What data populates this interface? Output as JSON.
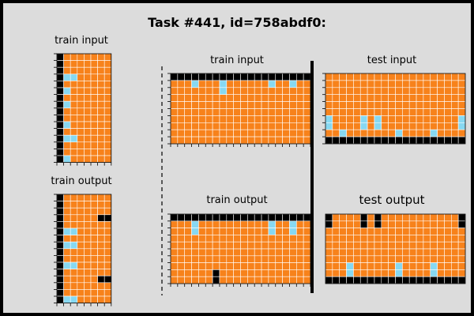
{
  "title": "Task #441, id=758abdf0:",
  "labels": {
    "train_input": "train input",
    "train_output": "train output",
    "test_input": "test input",
    "test_output": "test output"
  },
  "colors": {
    "background": "#dcdcdc",
    "orange": "#f7821b",
    "black": "#000000",
    "cyan": "#87d8f1",
    "gridline": "#ffffff"
  },
  "grids": {
    "left_train_input": {
      "rows": 16,
      "cols": 8,
      "black_cols": [
        0
      ],
      "black_cells": [],
      "cyan_cells": [
        [
          3,
          1
        ],
        [
          3,
          2
        ],
        [
          5,
          1
        ],
        [
          7,
          1
        ],
        [
          10,
          1
        ],
        [
          12,
          1
        ],
        [
          12,
          2
        ],
        [
          15,
          1
        ]
      ]
    },
    "left_train_output": {
      "rows": 16,
      "cols": 8,
      "black_cols": [
        0
      ],
      "black_cells": [
        [
          3,
          6
        ],
        [
          3,
          7
        ],
        [
          12,
          6
        ],
        [
          12,
          7
        ]
      ],
      "cyan_cells": [
        [
          5,
          1
        ],
        [
          5,
          2
        ],
        [
          7,
          1
        ],
        [
          7,
          2
        ],
        [
          10,
          1
        ],
        [
          10,
          2
        ],
        [
          15,
          1
        ],
        [
          15,
          2
        ]
      ]
    },
    "mid_train_input": {
      "rows": 10,
      "cols": 20,
      "black_rows": [
        0
      ],
      "black_cells": [],
      "cyan_cells": [
        [
          1,
          3
        ],
        [
          1,
          7
        ],
        [
          2,
          7
        ],
        [
          1,
          14
        ],
        [
          1,
          17
        ]
      ]
    },
    "mid_train_output": {
      "rows": 10,
      "cols": 20,
      "black_rows": [
        0
      ],
      "black_cells": [
        [
          8,
          6
        ],
        [
          9,
          6
        ]
      ],
      "cyan_cells": [
        [
          1,
          3
        ],
        [
          2,
          3
        ],
        [
          1,
          14
        ],
        [
          2,
          14
        ],
        [
          1,
          17
        ],
        [
          2,
          17
        ]
      ]
    },
    "test_input": {
      "rows": 10,
      "cols": 20,
      "black_rows": [
        9
      ],
      "black_cells": [],
      "cyan_cells": [
        [
          6,
          0
        ],
        [
          7,
          0
        ],
        [
          6,
          5
        ],
        [
          7,
          5
        ],
        [
          6,
          7
        ],
        [
          7,
          7
        ],
        [
          6,
          19
        ],
        [
          7,
          19
        ],
        [
          8,
          2
        ],
        [
          8,
          10
        ],
        [
          8,
          15
        ]
      ]
    },
    "test_output": {
      "rows": 10,
      "cols": 20,
      "black_rows": [
        9
      ],
      "black_cells": [
        [
          0,
          0
        ],
        [
          1,
          0
        ],
        [
          0,
          5
        ],
        [
          1,
          5
        ],
        [
          0,
          7
        ],
        [
          1,
          7
        ],
        [
          0,
          19
        ],
        [
          1,
          19
        ]
      ],
      "cyan_cells": [
        [
          7,
          3
        ],
        [
          8,
          3
        ],
        [
          7,
          10
        ],
        [
          8,
          10
        ],
        [
          7,
          15
        ],
        [
          8,
          15
        ]
      ]
    }
  }
}
